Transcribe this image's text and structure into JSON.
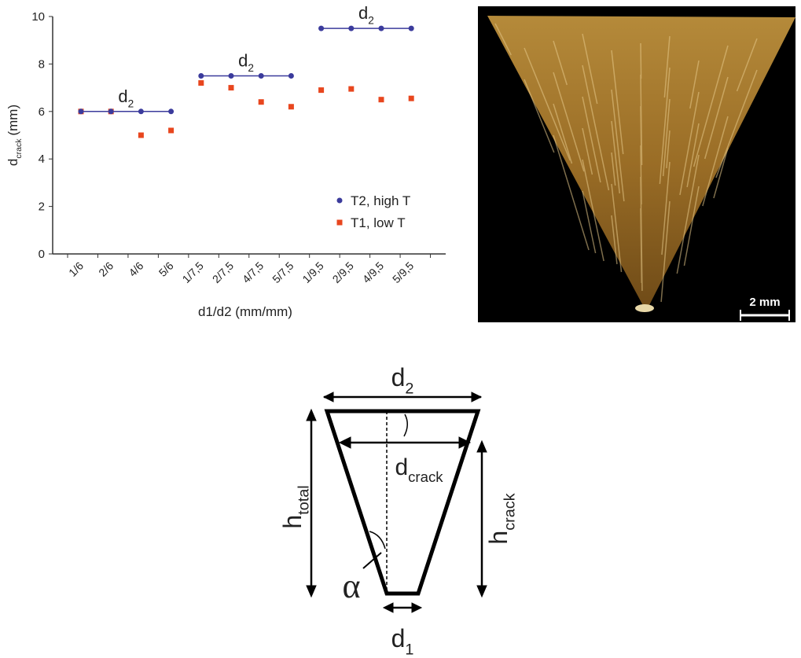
{
  "chart_data": {
    "type": "scatter",
    "x_label": "d1/d2 (mm/mm)",
    "y_label": {
      "text": "d",
      "sub": "crack",
      "unit": "(mm)"
    },
    "categories": [
      "1/6",
      "2/6",
      "4/6",
      "5/6",
      "1/7,5",
      "2/7,5",
      "4/7,5",
      "5/7,5",
      "1/9,5",
      "2/9,5",
      "4/9,5",
      "5/9,5"
    ],
    "series": [
      {
        "name": "T2, high T",
        "color": "#3b3b9c",
        "marker": "circle",
        "values": [
          6,
          6,
          6,
          6,
          7.5,
          7.5,
          7.5,
          7.5,
          9.5,
          9.5,
          9.5,
          9.5
        ]
      },
      {
        "name": "T1, low T",
        "color": "#e8461e",
        "marker": "square",
        "values": [
          6,
          6,
          5,
          5.2,
          7.2,
          7,
          6.4,
          6.2,
          6.9,
          6.95,
          6.5,
          6.55
        ]
      }
    ],
    "annotations": [
      {
        "text": "d",
        "sub": "2"
      },
      {
        "text": "d",
        "sub": "2"
      },
      {
        "text": "d",
        "sub": "2"
      }
    ],
    "ylim": [
      0,
      10
    ],
    "yticks": [
      0,
      2,
      4,
      6,
      8,
      10
    ]
  },
  "photo": {
    "scale_bar": "2 mm"
  },
  "diagram": {
    "labels": [
      {
        "text": "d",
        "sub": "2"
      },
      {
        "text": "d",
        "sub": "crack"
      },
      {
        "text": "h",
        "sub": "total"
      },
      {
        "text": "h",
        "sub": "crack"
      },
      {
        "text": "α"
      },
      {
        "text": "d",
        "sub": "1"
      }
    ]
  }
}
